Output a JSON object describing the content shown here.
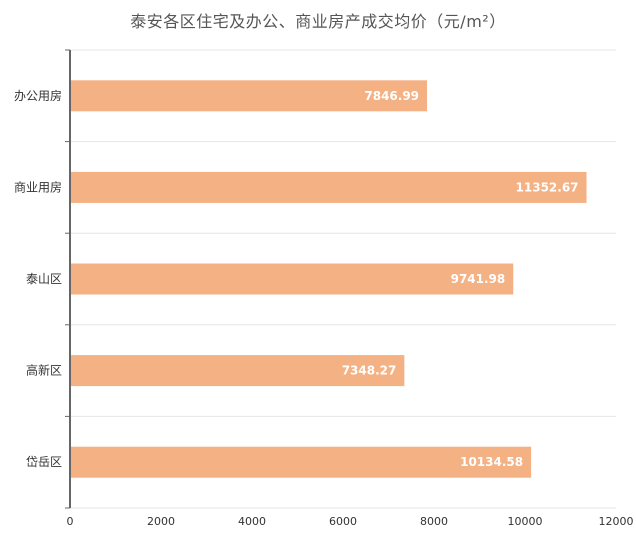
{
  "chart_data": {
    "type": "bar",
    "orientation": "horizontal",
    "title": "泰安各区住宅及办公、商业房产成交均价（元/m²）",
    "categories": [
      "办公用房",
      "商业用房",
      "泰山区",
      "高新区",
      "岱岳区"
    ],
    "values": [
      7846.99,
      11352.67,
      9741.98,
      7348.27,
      10134.58
    ],
    "value_labels": [
      "7846.99",
      "11352.67",
      "9741.98",
      "7348.27",
      "10134.58"
    ],
    "xlim": [
      0,
      12000
    ],
    "x_ticks": [
      "0",
      "2000",
      "4000",
      "6000",
      "8000",
      "10000",
      "12000"
    ],
    "xlabel": "",
    "ylabel": "",
    "grid": "horizontal",
    "legend": "none",
    "colors": {
      "bar": "#f4b183",
      "grid": "#e6e6e6",
      "axis": "#666666",
      "value_text": "#ffffff"
    }
  }
}
